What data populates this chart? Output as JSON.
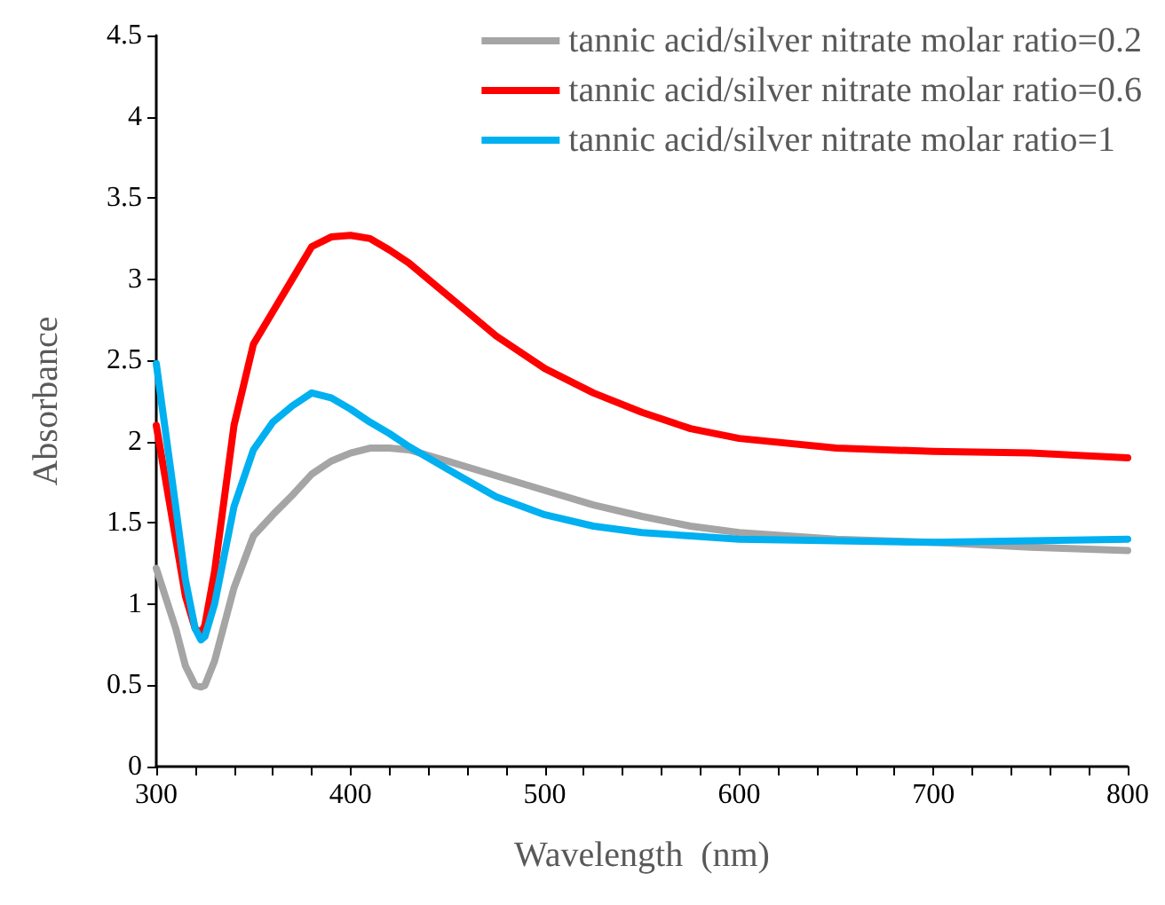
{
  "chart_data": {
    "type": "line",
    "xlabel": "Wavelength  (nm)",
    "ylabel": "Absorbance",
    "x": [
      300,
      310,
      315,
      320,
      323,
      325,
      330,
      340,
      350,
      360,
      370,
      380,
      390,
      400,
      410,
      420,
      430,
      450,
      475,
      500,
      525,
      550,
      575,
      600,
      650,
      700,
      750,
      800
    ],
    "series": [
      {
        "name": "tannic acid/silver nitrate molar ratio=0.2",
        "color": "#a5a5a5",
        "values": [
          1.22,
          0.85,
          0.62,
          0.5,
          0.49,
          0.5,
          0.65,
          1.1,
          1.42,
          1.55,
          1.67,
          1.8,
          1.88,
          1.93,
          1.96,
          1.96,
          1.95,
          1.88,
          1.79,
          1.7,
          1.61,
          1.54,
          1.48,
          1.44,
          1.4,
          1.38,
          1.35,
          1.33
        ]
      },
      {
        "name": "tannic acid/silver nitrate molar ratio=0.6",
        "color": "#ff0000",
        "values": [
          2.1,
          1.4,
          1.05,
          0.85,
          0.82,
          0.87,
          1.2,
          2.1,
          2.6,
          2.8,
          3.0,
          3.2,
          3.26,
          3.27,
          3.25,
          3.18,
          3.1,
          2.9,
          2.65,
          2.45,
          2.3,
          2.18,
          2.08,
          2.02,
          1.96,
          1.94,
          1.93,
          1.9
        ]
      },
      {
        "name": "tannic acid/silver nitrate molar ratio=1",
        "color": "#00b0f0",
        "values": [
          2.48,
          1.6,
          1.15,
          0.85,
          0.78,
          0.8,
          1.0,
          1.6,
          1.95,
          2.12,
          2.22,
          2.3,
          2.27,
          2.2,
          2.12,
          2.05,
          1.97,
          1.83,
          1.66,
          1.55,
          1.48,
          1.44,
          1.42,
          1.4,
          1.39,
          1.38,
          1.39,
          1.4
        ]
      }
    ],
    "xlim": [
      300,
      800
    ],
    "xticks": [
      300,
      {
        "value": 320,
        "label": null
      },
      {
        "value": 340,
        "label": null
      },
      {
        "value": 360,
        "label": null
      },
      {
        "value": 380,
        "label": null
      },
      400,
      {
        "value": 420,
        "label": null
      },
      {
        "value": 440,
        "label": null
      },
      {
        "value": 460,
        "label": null
      },
      {
        "value": 480,
        "label": null
      },
      500,
      {
        "value": 520,
        "label": null
      },
      {
        "value": 540,
        "label": null
      },
      {
        "value": 560,
        "label": null
      },
      {
        "value": 580,
        "label": null
      },
      600,
      {
        "value": 620,
        "label": null
      },
      {
        "value": 640,
        "label": null
      },
      {
        "value": 660,
        "label": null
      },
      {
        "value": 680,
        "label": null
      },
      700,
      {
        "value": 720,
        "label": null
      },
      {
        "value": 740,
        "label": null
      },
      {
        "value": 760,
        "label": null
      },
      {
        "value": 780,
        "label": null
      },
      800
    ],
    "ylim": [
      0,
      4.5
    ],
    "yticks": [
      0,
      0.5,
      1,
      1.5,
      2,
      2.5,
      3,
      3.5,
      4,
      4.5
    ],
    "grid": false,
    "legend": "top right",
    "marker": "none",
    "line_style": "solid"
  }
}
